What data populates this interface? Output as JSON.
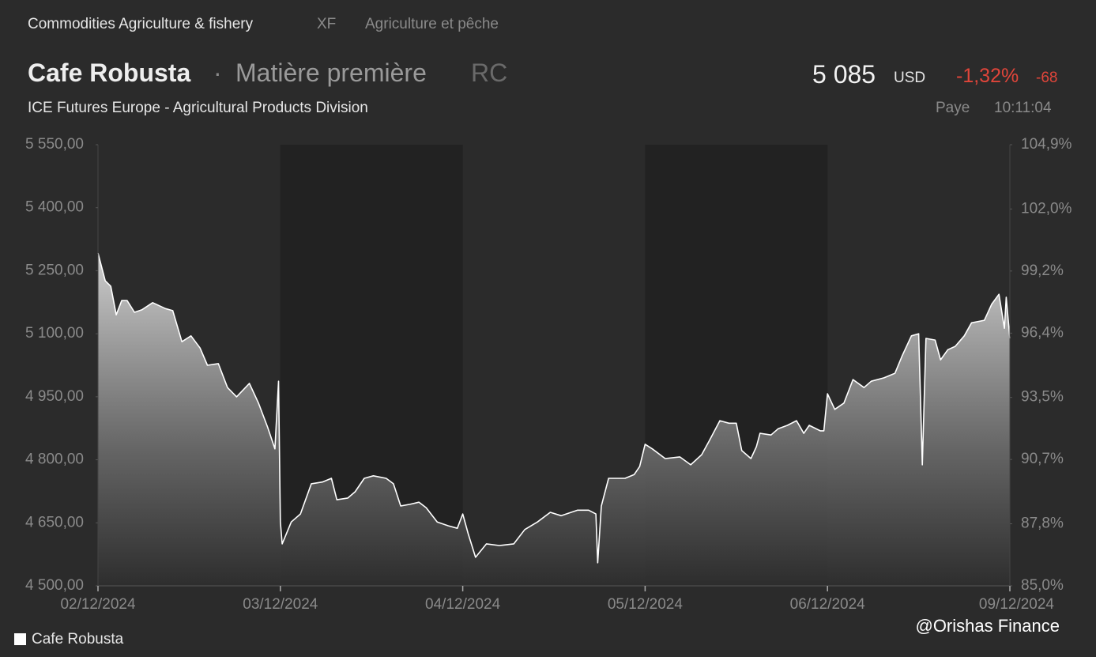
{
  "header": {
    "breadcrumb": "Commodities Agriculture & fishery",
    "exchange_code": "XF",
    "category_fr": "Agriculture et pêche",
    "name": "Cafe Robusta",
    "separator": "·",
    "kind": "Matière première",
    "symbol": "RC",
    "price": "5 085",
    "currency": "USD",
    "change_pct": "-1,32%",
    "change": "-68",
    "exchange": "ICE Futures Europe - Agricultural Products Division",
    "country": "Paye",
    "time": "10:11:04"
  },
  "watermark": "@Orishas Finance",
  "chart_data": {
    "type": "area",
    "x": [
      0,
      0.04,
      0.07,
      0.1,
      0.13,
      0.16,
      0.2,
      0.24,
      0.3,
      0.37,
      0.41,
      0.46,
      0.51,
      0.56,
      0.6,
      0.66,
      0.71,
      0.76,
      0.83,
      0.88,
      0.93,
      0.97,
      0.99,
      1.0,
      1.01,
      1.06,
      1.11,
      1.17,
      1.23,
      1.28,
      1.31,
      1.37,
      1.41,
      1.46,
      1.51,
      1.58,
      1.62,
      1.66,
      1.71,
      1.76,
      1.8,
      1.86,
      1.92,
      1.97,
      2.0,
      2.03,
      2.07,
      2.13,
      2.2,
      2.28,
      2.34,
      2.41,
      2.48,
      2.54,
      2.63,
      2.69,
      2.73,
      2.74,
      2.76,
      2.8,
      2.89,
      2.94,
      2.97,
      3.0,
      3.04,
      3.11,
      3.19,
      3.25,
      3.31,
      3.35,
      3.41,
      3.46,
      3.5,
      3.53,
      3.58,
      3.61,
      3.63,
      3.69,
      3.73,
      3.78,
      3.83,
      3.87,
      3.9,
      3.96,
      3.98,
      4.0,
      4.04,
      4.09,
      4.14,
      4.2,
      4.24,
      4.31,
      4.37,
      4.41,
      4.46,
      4.5,
      4.52,
      4.54,
      4.59,
      4.62,
      4.66,
      4.7,
      4.75,
      4.79,
      4.86,
      4.9,
      4.94,
      4.97,
      4.98,
      5.0
    ],
    "series": [
      {
        "name": "Cafe Robusta",
        "color": "#ffffff",
        "values": [
          5292,
          5226,
          5213,
          5145,
          5179,
          5179,
          5151,
          5157,
          5174,
          5160,
          5155,
          5081,
          5095,
          5066,
          5025,
          5029,
          4972,
          4950,
          4982,
          4935,
          4878,
          4826,
          4987,
          4652,
          4600,
          4652,
          4671,
          4743,
          4747,
          4756,
          4705,
          4709,
          4724,
          4756,
          4762,
          4756,
          4743,
          4690,
          4694,
          4699,
          4686,
          4652,
          4643,
          4637,
          4671,
          4624,
          4568,
          4600,
          4596,
          4600,
          4634,
          4652,
          4675,
          4667,
          4680,
          4680,
          4671,
          4555,
          4690,
          4756,
          4756,
          4765,
          4784,
          4837,
          4826,
          4803,
          4807,
          4788,
          4812,
          4844,
          4893,
          4887,
          4887,
          4822,
          4803,
          4831,
          4863,
          4859,
          4874,
          4882,
          4893,
          4863,
          4882,
          4869,
          4869,
          4957,
          4920,
          4935,
          4991,
          4972,
          4987,
          4995,
          5006,
          5048,
          5095,
          5100,
          4788,
          5089,
          5085,
          5038,
          5062,
          5070,
          5095,
          5126,
          5132,
          5170,
          5194,
          5113,
          5187,
          5089
        ]
      }
    ],
    "xlim": [
      0,
      5
    ],
    "xticks": [
      {
        "value": 0,
        "label": "02/12/2024"
      },
      {
        "value": 1,
        "label": "03/12/2024"
      },
      {
        "value": 2,
        "label": "04/12/2024"
      },
      {
        "value": 3,
        "label": "05/12/2024"
      },
      {
        "value": 4,
        "label": "06/12/2024"
      },
      {
        "value": 5,
        "label": "09/12/2024"
      }
    ],
    "ylim": [
      4500,
      5550
    ],
    "yticks": [
      {
        "value": 4500,
        "label": "4 500,00"
      },
      {
        "value": 4650,
        "label": "4 650,00"
      },
      {
        "value": 4800,
        "label": "4 800,00"
      },
      {
        "value": 4950,
        "label": "4 950,00"
      },
      {
        "value": 5100,
        "label": "5 100,00"
      },
      {
        "value": 5250,
        "label": "5 250,00"
      },
      {
        "value": 5400,
        "label": "5 400,00"
      },
      {
        "value": 5550,
        "label": "5 550,00"
      }
    ],
    "y2lim": [
      85.0,
      104.9
    ],
    "y2ticks": [
      {
        "value": 85.0,
        "label": "85,0%"
      },
      {
        "value": 87.8,
        "label": "87,8%"
      },
      {
        "value": 90.7,
        "label": "90,7%"
      },
      {
        "value": 93.5,
        "label": "93,5%"
      },
      {
        "value": 96.4,
        "label": "96,4%"
      },
      {
        "value": 99.2,
        "label": "99,2%"
      },
      {
        "value": 102.0,
        "label": "102,0%"
      },
      {
        "value": 104.9,
        "label": "104,9%"
      }
    ],
    "grid": false
  }
}
